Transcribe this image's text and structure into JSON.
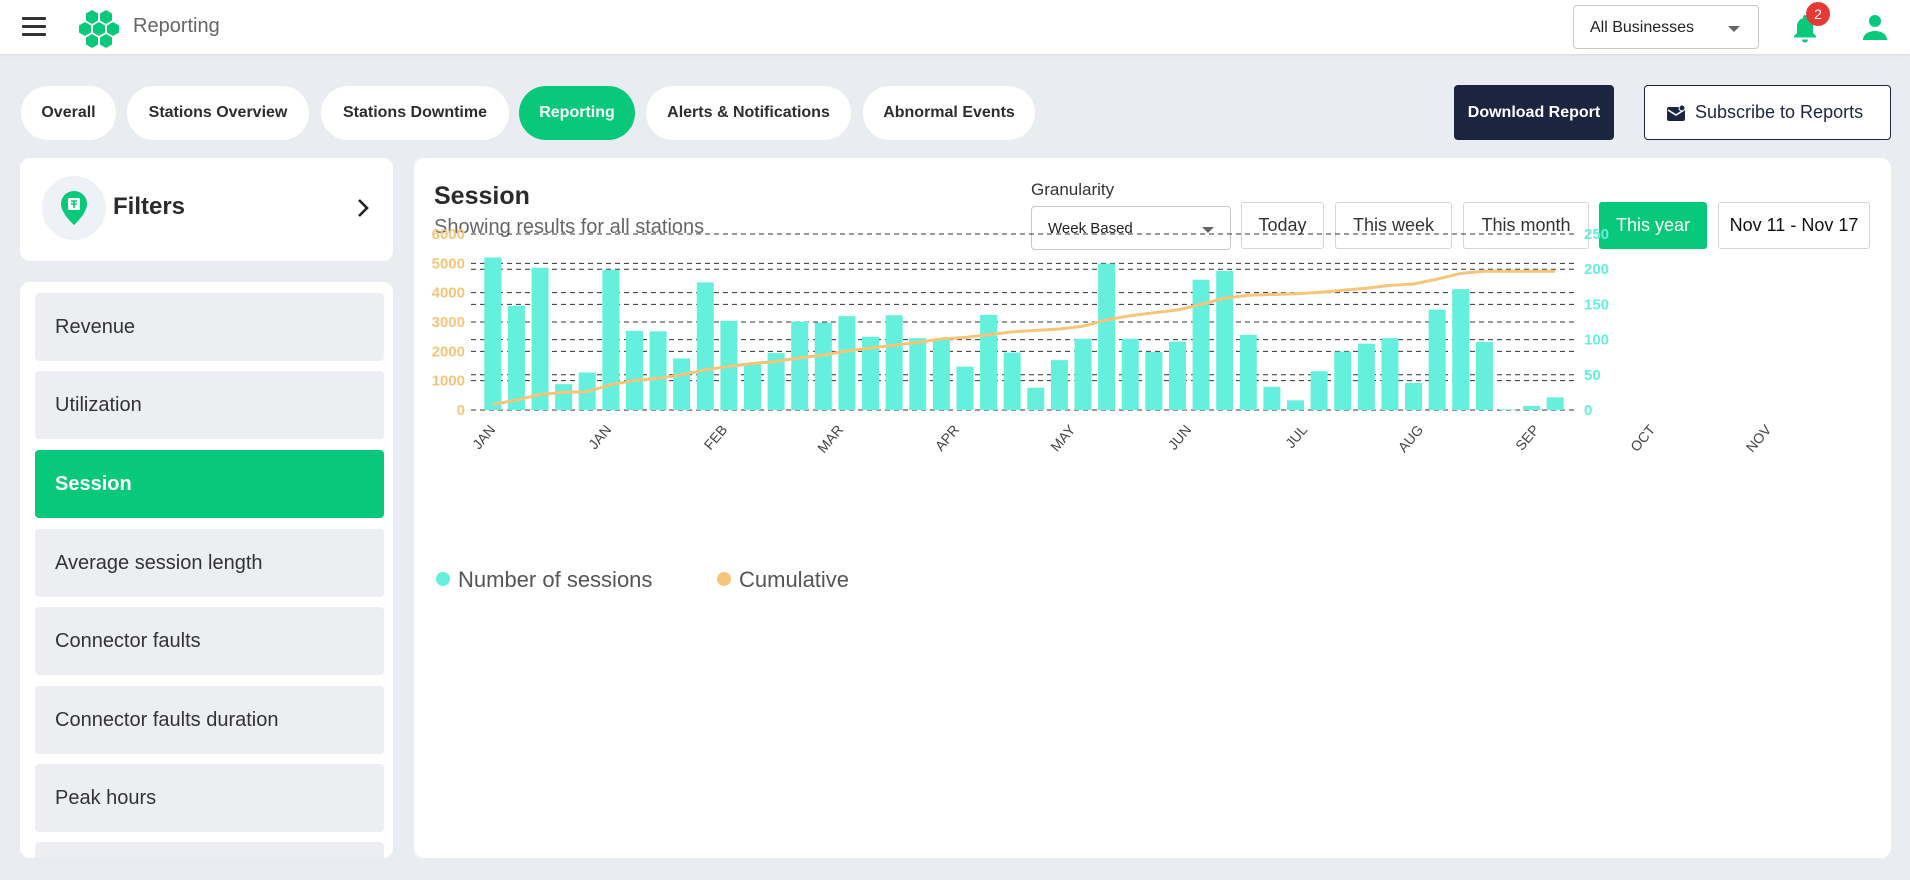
{
  "header": {
    "app_title": "Reporting",
    "business_select": "All Businesses",
    "notification_count": "2",
    "icons": [
      "menu-icon",
      "logo-icon",
      "bell-icon",
      "user-icon"
    ]
  },
  "tabs": [
    {
      "label": "Overall",
      "active": false
    },
    {
      "label": "Stations Overview",
      "active": false
    },
    {
      "label": "Stations Downtime",
      "active": false
    },
    {
      "label": "Reporting",
      "active": true
    },
    {
      "label": "Alerts & Notifications",
      "active": false
    },
    {
      "label": "Abnormal Events",
      "active": false
    }
  ],
  "actions": {
    "download": "Download Report",
    "subscribe": "Subscribe to Reports"
  },
  "filters": {
    "title": "Filters"
  },
  "metrics": [
    {
      "label": "Revenue",
      "active": false
    },
    {
      "label": "Utilization",
      "active": false
    },
    {
      "label": "Session",
      "active": true
    },
    {
      "label": "Average session length",
      "active": false
    },
    {
      "label": "Connector faults",
      "active": false
    },
    {
      "label": "Connector faults duration",
      "active": false
    },
    {
      "label": "Peak hours",
      "active": false
    }
  ],
  "report": {
    "title": "Session",
    "subtitle": "Showing results for all stations",
    "granularity_label": "Granularity",
    "granularity_value": "Week Based",
    "periods": [
      {
        "label": "Today",
        "active": false
      },
      {
        "label": "This week",
        "active": false
      },
      {
        "label": "This month",
        "active": false
      },
      {
        "label": "This year",
        "active": true
      }
    ],
    "date_range": "Nov 11 - Nov 17"
  },
  "colors": {
    "accent": "#08c97a",
    "navy": "#1b2540",
    "bar": "#64f0dc",
    "line": "#f6c57a",
    "badge": "#e53935"
  },
  "chart_data": {
    "type": "bar",
    "x_labels": [
      "JAN",
      "JAN",
      "FEB",
      "MAR",
      "APR",
      "MAY",
      "JUN",
      "JUL",
      "AUG",
      "SEP",
      "OCT",
      "NOV"
    ],
    "y_left": {
      "min": 0,
      "max": 6000,
      "ticks": [
        0,
        1000,
        2000,
        3000,
        4000,
        5000,
        6000
      ]
    },
    "y_right": {
      "min": 0,
      "max": 250,
      "ticks": [
        0,
        50,
        100,
        150,
        200,
        250
      ]
    },
    "grid": true,
    "legend": "bottom-left",
    "series": [
      {
        "name": "Number of sessions",
        "type": "bar",
        "axis": "left",
        "values": [
          5200,
          3550,
          4850,
          880,
          1280,
          4780,
          2700,
          2680,
          1760,
          4350,
          3040,
          1600,
          1940,
          3010,
          2980,
          3200,
          2500,
          3230,
          2450,
          2430,
          1480,
          3240,
          1960,
          760,
          1700,
          2430,
          4990,
          2430,
          1980,
          2330,
          4440,
          4740,
          2560,
          790,
          330,
          1320,
          1990,
          2260,
          2450,
          920,
          3420,
          4120,
          2320,
          20,
          140,
          430
        ]
      },
      {
        "name": "Cumulative",
        "type": "line",
        "axis": "right",
        "values": [
          8,
          14,
          22,
          25,
          26,
          36,
          42,
          45,
          50,
          57,
          62,
          66,
          69,
          74,
          78,
          84,
          88,
          92,
          96,
          101,
          103,
          107,
          111,
          113,
          115,
          119,
          128,
          134,
          138,
          142,
          150,
          159,
          163,
          164,
          165,
          167,
          170,
          173,
          177,
          179,
          186,
          194,
          197,
          197,
          197,
          197
        ]
      }
    ]
  }
}
